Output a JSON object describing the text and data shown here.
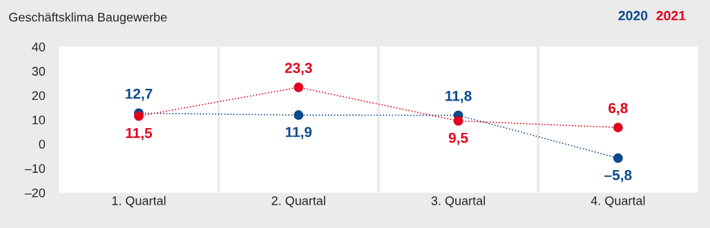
{
  "chart_data": {
    "type": "line",
    "title": "Geschäftsklima Baugewerbe",
    "categories": [
      "1. Quartal",
      "2. Quartal",
      "3. Quartal",
      "4. Quartal"
    ],
    "series": [
      {
        "name": "2020",
        "color": "#0b4a8b",
        "values": [
          12.7,
          11.9,
          11.8,
          -5.8
        ],
        "value_labels": [
          "12,7",
          "11,9",
          "11,8",
          "–5,8"
        ]
      },
      {
        "name": "2021",
        "color": "#e2001a",
        "values": [
          11.5,
          23.3,
          9.5,
          6.8
        ],
        "value_labels": [
          "11,5",
          "23,3",
          "9,5",
          "6,8"
        ]
      }
    ],
    "ylim": [
      -20,
      40
    ],
    "yticks": [
      {
        "value": -20,
        "label": "–20"
      },
      {
        "value": -10,
        "label": "–10"
      },
      0,
      10,
      20,
      30,
      40
    ],
    "marker": "circle",
    "line_style": "dotted",
    "legend": "top right",
    "grid": false
  }
}
